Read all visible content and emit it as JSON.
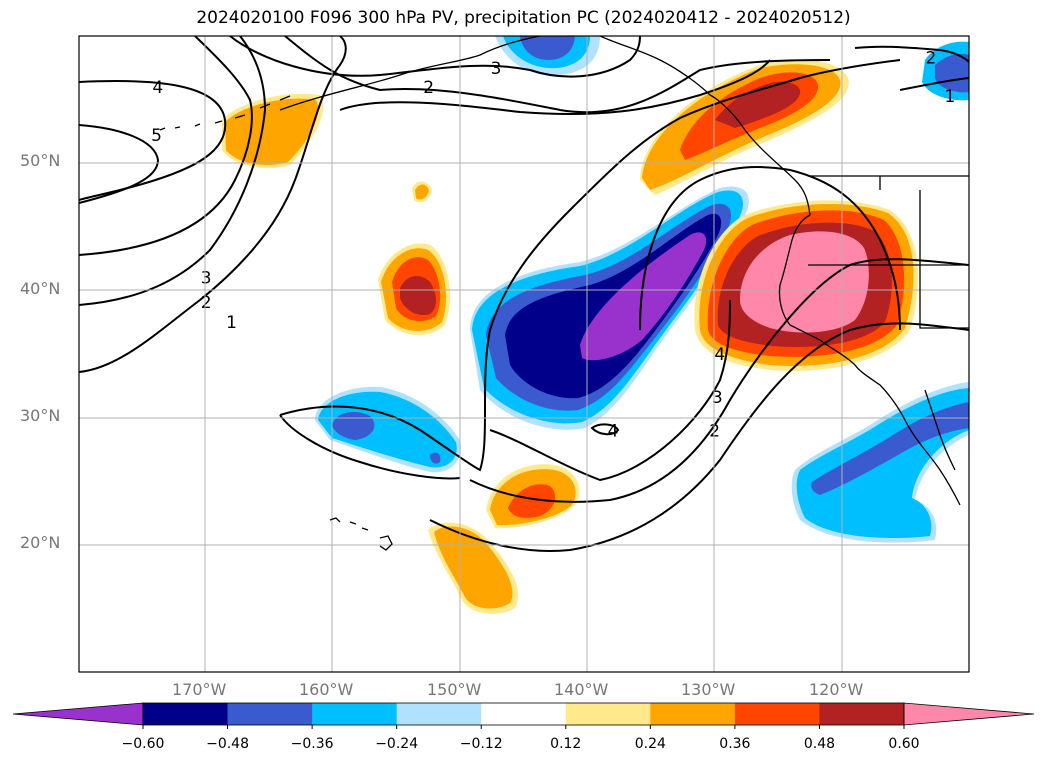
{
  "chart_data": {
    "type": "heatmap",
    "title": "2024020100 F096 300 hPa PV, precipitation PC (2024020412 - 2024020512)",
    "projection": "PlateCarree",
    "lon_range": [
      -180,
      -110
    ],
    "lat_range": [
      10,
      60
    ],
    "grid": true,
    "lat_ticks": [
      "20°N",
      "30°N",
      "40°N",
      "50°N"
    ],
    "lon_ticks": [
      "170°W",
      "160°W",
      "150°W",
      "140°W",
      "130°W",
      "120°W"
    ],
    "colorbar": {
      "orientation": "horizontal",
      "extend": "both",
      "levels": [
        -0.6,
        -0.48,
        -0.36,
        -0.24,
        -0.12,
        0.12,
        0.24,
        0.36,
        0.48,
        0.6
      ],
      "tick_labels": [
        "−0.60",
        "−0.48",
        "−0.36",
        "−0.24",
        "−0.12",
        "0.12",
        "0.24",
        "0.36",
        "0.48",
        "0.60"
      ],
      "colors": [
        "#9932cc",
        "#00008b",
        "#3a5bd0",
        "#00bfff",
        "#b0e2ff",
        "#ffffff",
        "#ffe98a",
        "#ffa500",
        "#ff4500",
        "#b22222",
        "#ff88aa"
      ]
    },
    "pv_contour_labels": [
      {
        "text": "4",
        "lon": -173.8,
        "lat": 56.0
      },
      {
        "text": "5",
        "lon": -173.9,
        "lat": 52.2
      },
      {
        "text": "2",
        "lon": -152.5,
        "lat": 56.0
      },
      {
        "text": "3",
        "lon": -147.2,
        "lat": 57.5
      },
      {
        "text": "3",
        "lon": -170.0,
        "lat": 41.0
      },
      {
        "text": "2",
        "lon": -170.0,
        "lat": 39.1
      },
      {
        "text": "1",
        "lon": -168.0,
        "lat": 37.5
      },
      {
        "text": "4",
        "lon": -129.6,
        "lat": 35.0
      },
      {
        "text": "3",
        "lon": -129.8,
        "lat": 31.6
      },
      {
        "text": "2",
        "lon": -130.0,
        "lat": 29.0
      },
      {
        "text": "4",
        "lon": -138.0,
        "lat": 29.0
      },
      {
        "text": "2",
        "lon": -113.0,
        "lat": 58.3
      },
      {
        "text": "1",
        "lon": -111.5,
        "lat": 55.3
      }
    ]
  }
}
